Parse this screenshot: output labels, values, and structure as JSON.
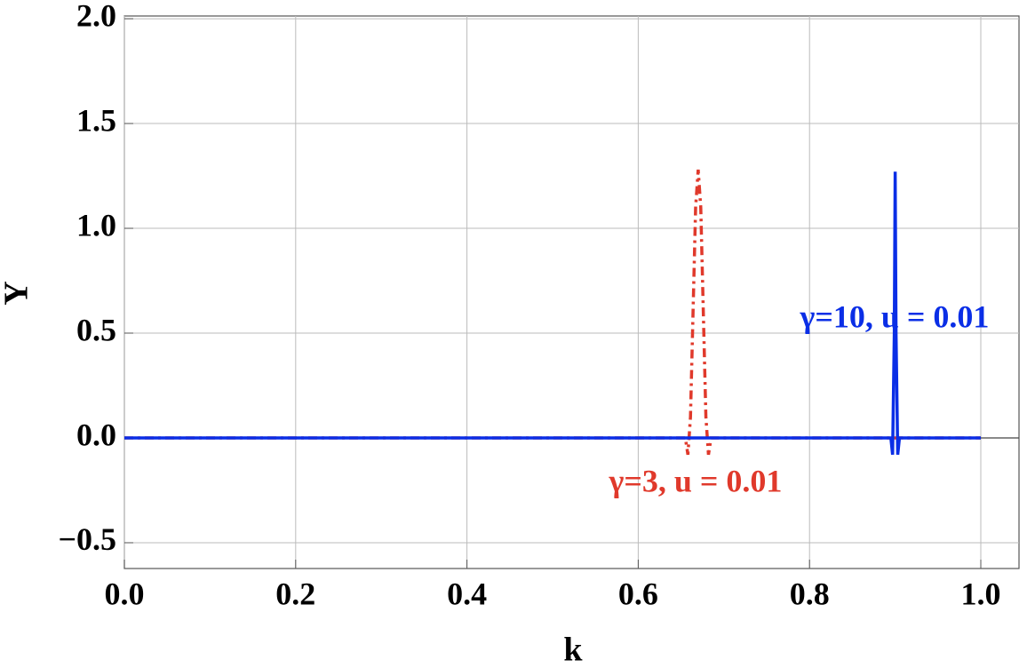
{
  "chart_data": {
    "type": "line",
    "x_label": "k",
    "y_label": "Υ",
    "xlim": [
      0,
      1.0446
    ],
    "ylim": [
      -0.623,
      2.013
    ],
    "xticks": [
      {
        "value": 0,
        "label": "0.0"
      },
      0.2,
      0.4,
      0.6,
      0.8,
      {
        "value": 1,
        "label": "1.0"
      }
    ],
    "yticks": [
      {
        "value": -0.5,
        "label": "−0.5"
      },
      {
        "value": 0,
        "label": "0.0"
      },
      0.5,
      {
        "value": 1,
        "label": "1.0"
      },
      1.5,
      {
        "value": 2,
        "label": "2.0"
      }
    ],
    "grid": true,
    "series": [
      {
        "color": "#e0392b",
        "dash": "dashdot",
        "x": [
          0,
          0.655,
          0.658,
          0.661,
          0.664,
          0.667,
          0.67,
          0.673,
          0.676,
          0.679,
          0.682,
          0.685,
          1.0
        ],
        "values": [
          0,
          0,
          -0.08,
          0.1,
          0.6,
          1.1,
          1.28,
          1.1,
          0.6,
          0.1,
          -0.08,
          0,
          0
        ]
      },
      {
        "color": "#0a2ee6",
        "dash": "solid",
        "x": [
          0,
          0.895,
          0.897,
          0.899,
          0.9,
          0.901,
          0.903,
          0.905,
          1.0
        ],
        "values": [
          0,
          0,
          -0.08,
          0.5,
          1.27,
          0.5,
          -0.08,
          0,
          0
        ]
      }
    ],
    "annotations": [
      "γ=3, u = 0.01",
      "γ=10, u = 0.01"
    ]
  }
}
